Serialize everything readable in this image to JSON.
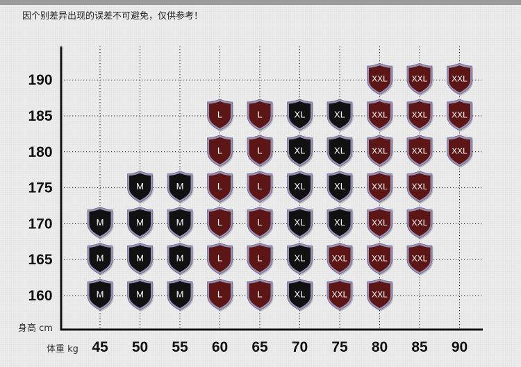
{
  "notice": "因个别差异出现的误差不可避免，仅供参考！",
  "chart_data": {
    "type": "table",
    "title": "",
    "xlabel": "体重 kg",
    "ylabel": "身高 cm",
    "x": [
      45,
      50,
      55,
      60,
      65,
      70,
      75,
      80,
      85,
      90
    ],
    "y": [
      160,
      165,
      170,
      175,
      180,
      185,
      190
    ],
    "grid": true,
    "colors": {
      "M": "#111111",
      "L": "#5c1616",
      "XL": "#111111",
      "XXL": "#5c1616"
    },
    "cells": [
      {
        "weight": 45,
        "height": 160,
        "size": "M"
      },
      {
        "weight": 45,
        "height": 165,
        "size": "M"
      },
      {
        "weight": 45,
        "height": 170,
        "size": "M"
      },
      {
        "weight": 50,
        "height": 160,
        "size": "M"
      },
      {
        "weight": 50,
        "height": 165,
        "size": "M"
      },
      {
        "weight": 50,
        "height": 170,
        "size": "M"
      },
      {
        "weight": 50,
        "height": 175,
        "size": "M"
      },
      {
        "weight": 55,
        "height": 160,
        "size": "M"
      },
      {
        "weight": 55,
        "height": 165,
        "size": "M"
      },
      {
        "weight": 55,
        "height": 170,
        "size": "M"
      },
      {
        "weight": 55,
        "height": 175,
        "size": "M"
      },
      {
        "weight": 60,
        "height": 160,
        "size": "L"
      },
      {
        "weight": 60,
        "height": 165,
        "size": "L"
      },
      {
        "weight": 60,
        "height": 170,
        "size": "L"
      },
      {
        "weight": 60,
        "height": 175,
        "size": "L"
      },
      {
        "weight": 60,
        "height": 180,
        "size": "L"
      },
      {
        "weight": 60,
        "height": 185,
        "size": "L"
      },
      {
        "weight": 65,
        "height": 160,
        "size": "L"
      },
      {
        "weight": 65,
        "height": 165,
        "size": "L"
      },
      {
        "weight": 65,
        "height": 170,
        "size": "L"
      },
      {
        "weight": 65,
        "height": 175,
        "size": "L"
      },
      {
        "weight": 65,
        "height": 180,
        "size": "L"
      },
      {
        "weight": 65,
        "height": 185,
        "size": "L"
      },
      {
        "weight": 70,
        "height": 160,
        "size": "XL"
      },
      {
        "weight": 70,
        "height": 165,
        "size": "XL"
      },
      {
        "weight": 70,
        "height": 170,
        "size": "XL"
      },
      {
        "weight": 70,
        "height": 175,
        "size": "XL"
      },
      {
        "weight": 70,
        "height": 180,
        "size": "XL"
      },
      {
        "weight": 70,
        "height": 185,
        "size": "XL"
      },
      {
        "weight": 75,
        "height": 160,
        "size": "XXL"
      },
      {
        "weight": 75,
        "height": 165,
        "size": "XXL"
      },
      {
        "weight": 75,
        "height": 170,
        "size": "XL"
      },
      {
        "weight": 75,
        "height": 175,
        "size": "XL"
      },
      {
        "weight": 75,
        "height": 180,
        "size": "XL"
      },
      {
        "weight": 75,
        "height": 185,
        "size": "XL"
      },
      {
        "weight": 80,
        "height": 160,
        "size": "XXL"
      },
      {
        "weight": 80,
        "height": 165,
        "size": "XXL"
      },
      {
        "weight": 80,
        "height": 170,
        "size": "XXL"
      },
      {
        "weight": 80,
        "height": 175,
        "size": "XXL"
      },
      {
        "weight": 80,
        "height": 180,
        "size": "XXL"
      },
      {
        "weight": 80,
        "height": 185,
        "size": "XXL"
      },
      {
        "weight": 80,
        "height": 190,
        "size": "XXL"
      },
      {
        "weight": 85,
        "height": 165,
        "size": "XXL"
      },
      {
        "weight": 85,
        "height": 170,
        "size": "XXL"
      },
      {
        "weight": 85,
        "height": 175,
        "size": "XXL"
      },
      {
        "weight": 85,
        "height": 180,
        "size": "XXL"
      },
      {
        "weight": 85,
        "height": 185,
        "size": "XXL"
      },
      {
        "weight": 85,
        "height": 190,
        "size": "XXL"
      },
      {
        "weight": 90,
        "height": 180,
        "size": "XXL"
      },
      {
        "weight": 90,
        "height": 185,
        "size": "XXL"
      },
      {
        "weight": 90,
        "height": 190,
        "size": "XXL"
      }
    ]
  }
}
